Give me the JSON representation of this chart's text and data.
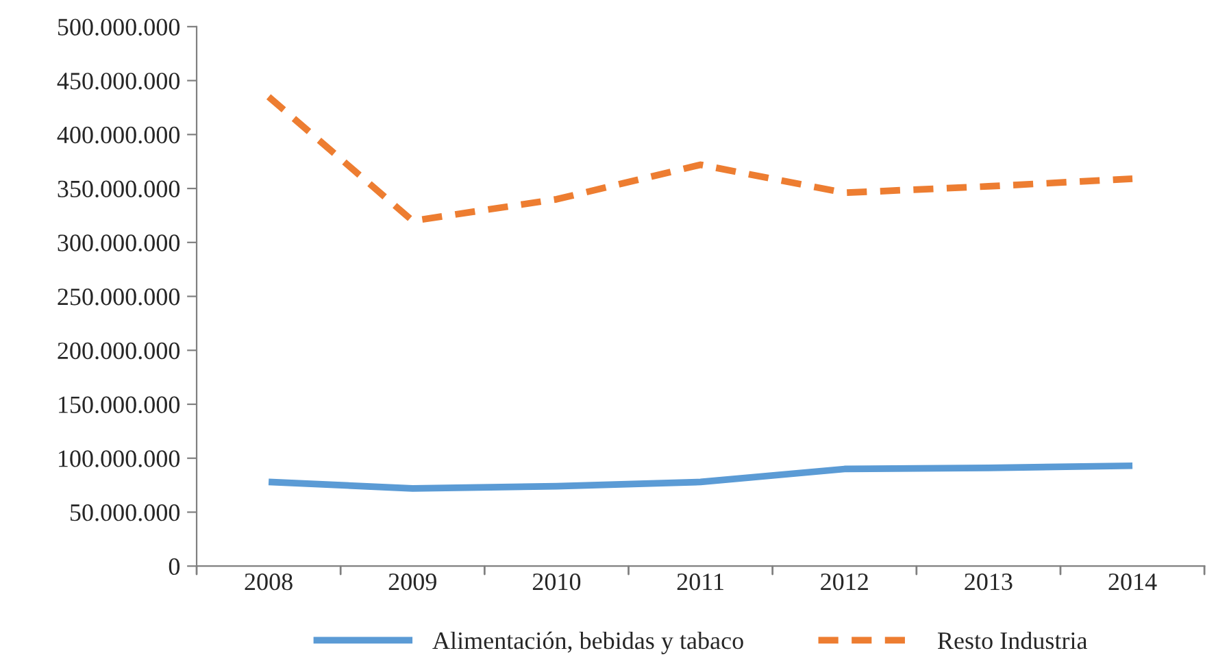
{
  "chart_data": {
    "type": "line",
    "categories": [
      "2008",
      "2009",
      "2010",
      "2011",
      "2012",
      "2013",
      "2014"
    ],
    "series": [
      {
        "name": "Alimentación, bebidas y tabaco",
        "color": "#5b9bd5",
        "line_style": "solid",
        "values": [
          78000000,
          72000000,
          74000000,
          78000000,
          90000000,
          91000000,
          93000000
        ]
      },
      {
        "name": "Resto Industria",
        "color": "#ed7d31",
        "line_style": "dashed",
        "values": [
          435000000,
          320000000,
          340000000,
          372000000,
          346000000,
          352000000,
          359000000
        ]
      }
    ],
    "ylim": [
      0,
      500000000
    ],
    "yticks": [
      0,
      {
        "value": 50000000,
        "label": "50.000.000"
      },
      {
        "value": 100000000,
        "label": "100.000.000"
      },
      {
        "value": 150000000,
        "label": "150.000.000"
      },
      {
        "value": 200000000,
        "label": "200.000.000"
      },
      {
        "value": 250000000,
        "label": "250.000.000"
      },
      {
        "value": 300000000,
        "label": "300.000.000"
      },
      {
        "value": 350000000,
        "label": "350.000.000"
      },
      {
        "value": 400000000,
        "label": "400.000.000"
      },
      {
        "value": 450000000,
        "label": "450.000.000"
      },
      {
        "value": 500000000,
        "label": "500.000.000"
      }
    ],
    "grid": false,
    "legend": "bottom",
    "marker": "none"
  }
}
